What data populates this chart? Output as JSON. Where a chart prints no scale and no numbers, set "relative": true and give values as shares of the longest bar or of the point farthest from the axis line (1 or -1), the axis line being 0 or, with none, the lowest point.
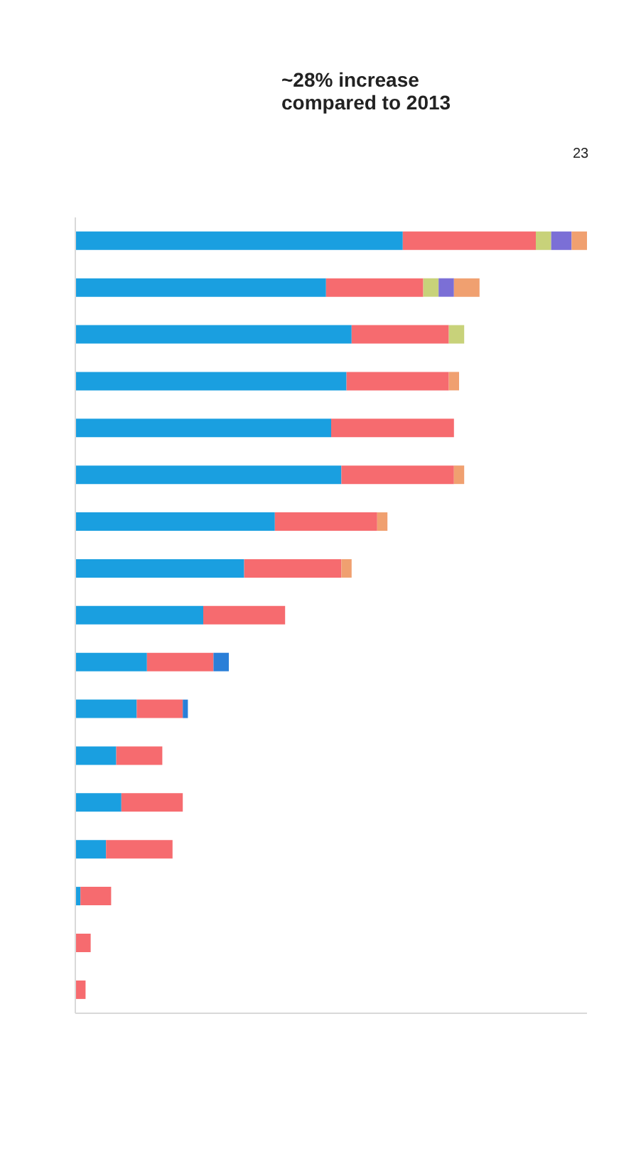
{
  "chart_data": {
    "type": "bar",
    "orientation": "horizontal",
    "stacked": true,
    "relative": true,
    "annotations": [
      "~28% increase compared to 2013",
      "23"
    ],
    "categories": [
      null,
      null,
      null,
      null,
      null,
      null,
      null,
      null,
      null,
      null,
      null,
      null,
      null,
      null,
      null,
      null,
      null
    ],
    "series": [
      {
        "color": "#1a9fe0",
        "values": [
          0.64,
          0.49,
          0.54,
          0.53,
          0.5,
          0.52,
          0.39,
          0.33,
          0.25,
          0.14,
          0.12,
          0.08,
          0.09,
          0.06,
          0.01,
          0,
          0
        ]
      },
      {
        "color": "#f66b6f",
        "values": [
          0.26,
          0.19,
          0.19,
          0.2,
          0.24,
          0.22,
          0.2,
          0.19,
          0.16,
          0.13,
          0.09,
          0.09,
          0.12,
          0.13,
          0.06,
          0.03,
          0.02
        ]
      },
      {
        "color": "#c8d27a",
        "values": [
          0.03,
          0.03,
          0.03,
          0,
          0,
          0,
          0,
          0,
          0,
          0,
          0,
          0,
          0,
          0,
          0,
          0,
          0
        ]
      },
      {
        "color": "#7b6fd6",
        "values": [
          0.04,
          0.03,
          0,
          0,
          0,
          0,
          0,
          0,
          0,
          0,
          0,
          0,
          0,
          0,
          0,
          0,
          0
        ]
      },
      {
        "color": "#f0a070",
        "values": [
          0.03,
          0.05,
          0,
          0.02,
          0,
          0.02,
          0.02,
          0.02,
          0,
          0,
          0,
          0,
          0,
          0,
          0,
          0,
          0
        ]
      },
      {
        "color": "#2a7fd8",
        "values": [
          0,
          0,
          0,
          0,
          0,
          0,
          0,
          0,
          0,
          0.03,
          0.01,
          0,
          0,
          0,
          0,
          0,
          0
        ]
      }
    ]
  }
}
